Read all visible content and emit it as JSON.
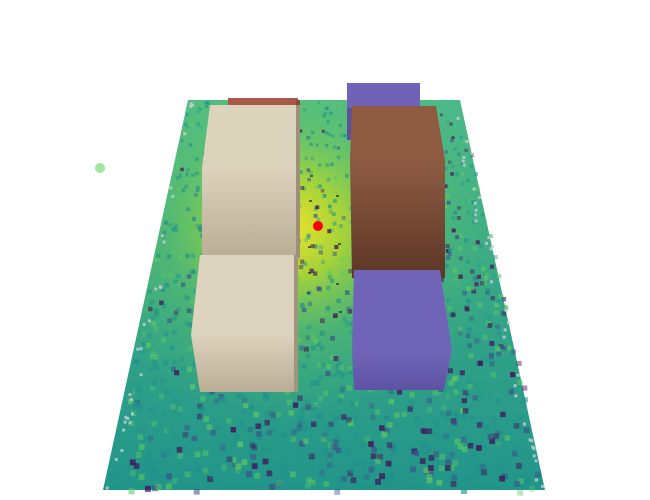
{
  "scene": {
    "type": "3d-heatmap-scene",
    "background": "#ffffff",
    "heatmap_colormap": [
      "#440154",
      "#3b528b",
      "#21918c",
      "#5ec962",
      "#c8e020",
      "#fde725"
    ],
    "hotspot_color": "#f2ee17",
    "transmitter_color": "#ff0000",
    "receiver_color": "#90e090",
    "blocks": [
      {
        "name": "block-back-left",
        "color": "#a85a4a"
      },
      {
        "name": "block-front-left-upper",
        "color": "#d8cfb8"
      },
      {
        "name": "block-front-left-lower",
        "color": "#d8cfb8"
      },
      {
        "name": "block-back-right",
        "color": "#7063b5"
      },
      {
        "name": "block-right-brown",
        "color": "#8b5a41"
      },
      {
        "name": "block-right-purple",
        "color": "#6f63b8"
      }
    ]
  }
}
